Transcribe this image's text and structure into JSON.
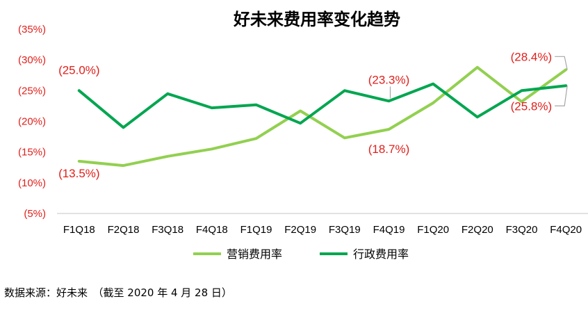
{
  "chart_data": {
    "type": "line",
    "title": "好未来费用率变化趋势",
    "categories": [
      "F1Q18",
      "F2Q18",
      "F3Q18",
      "F4Q18",
      "F1Q19",
      "F2Q19",
      "F3Q19",
      "F4Q19",
      "F1Q20",
      "F2Q20",
      "F3Q20",
      "F4Q20"
    ],
    "y_ticks": [
      "(5%)",
      "(10%)",
      "(15%)",
      "(20%)",
      "(25%)",
      "(30%)",
      "(35%)"
    ],
    "ylim": [
      5,
      35
    ],
    "grid": false,
    "legend_position": "bottom",
    "series": [
      {
        "name": "营销费用率",
        "color": "#92d050",
        "values": [
          13.5,
          12.8,
          14.3,
          15.5,
          17.2,
          21.7,
          17.3,
          18.7,
          23.0,
          28.8,
          23.2,
          28.4
        ]
      },
      {
        "name": "行政费用率",
        "color": "#00a650",
        "values": [
          25.0,
          19.0,
          24.5,
          22.2,
          22.7,
          19.7,
          25.0,
          23.3,
          26.1,
          20.7,
          25.0,
          25.8
        ]
      }
    ],
    "annotations": [
      {
        "text": "(25.0%)",
        "series": 1,
        "index": 0
      },
      {
        "text": "(13.5%)",
        "series": 0,
        "index": 0
      },
      {
        "text": "(23.3%)",
        "series": 1,
        "index": 7
      },
      {
        "text": "(18.7%)",
        "series": 0,
        "index": 7
      },
      {
        "text": "(28.4%)",
        "series": 0,
        "index": 11
      },
      {
        "text": "(25.8%)",
        "series": 1,
        "index": 11
      }
    ]
  },
  "source_note": "数据来源：好未来　（截至 2020 年 4 月 28 日）"
}
